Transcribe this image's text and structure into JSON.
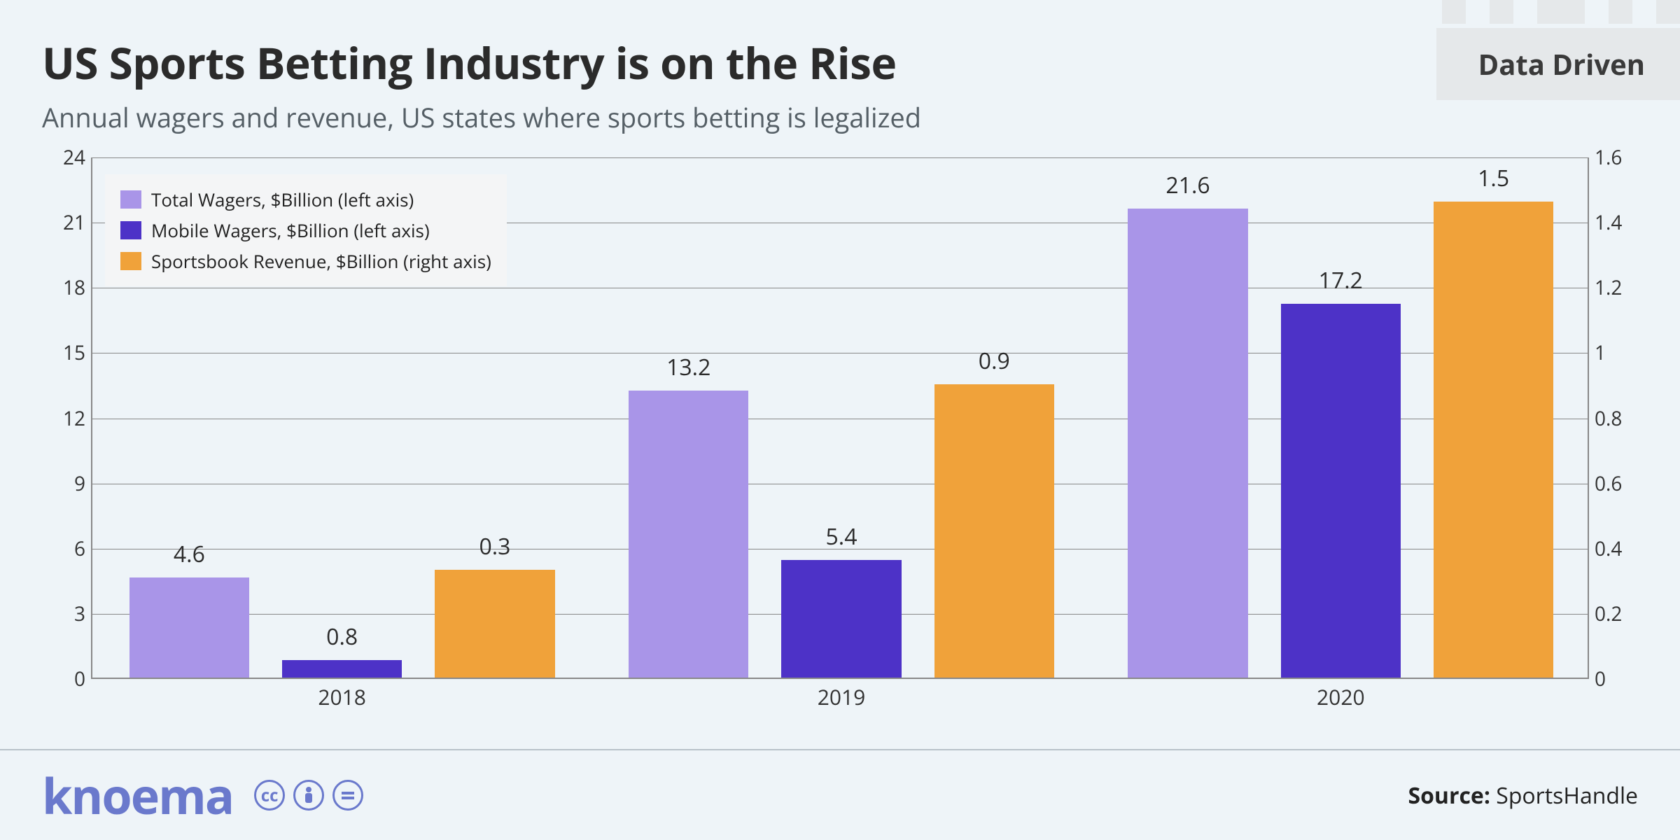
{
  "header": {
    "title": "US Sports Betting Industry is on the Rise",
    "subtitle": "Annual wagers and revenue, US states where sports betting is legalized",
    "badge": "Data Driven"
  },
  "chart": {
    "type": "bar",
    "background_color": "#eef4f8",
    "grid_color": "#888888",
    "categories": [
      "2018",
      "2019",
      "2020"
    ],
    "left_axis": {
      "min": 0,
      "max": 24,
      "step": 3,
      "ticks": [
        0,
        3,
        6,
        9,
        12,
        15,
        18,
        21,
        24
      ]
    },
    "right_axis": {
      "min": 0,
      "max": 1.6,
      "step": 0.2,
      "ticks": [
        0,
        0.2,
        0.4,
        0.6,
        0.8,
        1,
        1.2,
        1.4,
        1.6
      ]
    },
    "x_label_fontsize": 30,
    "y_label_fontsize": 28,
    "bar_label_fontsize": 32,
    "bar_width_pct": 8.0,
    "group_gap_pct": 2.2,
    "series": [
      {
        "name": "Total Wagers, $Billion (left axis)",
        "color": "#a995e8",
        "axis": "left",
        "values": [
          4.6,
          13.2,
          21.6
        ],
        "labels": [
          "4.6",
          "13.2",
          "21.6"
        ]
      },
      {
        "name": "Mobile Wagers, $Billion (left axis)",
        "color": "#4d32c7",
        "axis": "left",
        "values": [
          0.8,
          5.4,
          17.2
        ],
        "labels": [
          "0.8",
          "5.4",
          "17.2"
        ]
      },
      {
        "name": "Sportsbook Revenue, $Billion (right axis)",
        "color": "#f0a23a",
        "axis": "right",
        "values": [
          0.33,
          0.9,
          1.46
        ],
        "labels": [
          "0.3",
          "0.9",
          "1.5"
        ]
      }
    ]
  },
  "footer": {
    "logo": "knoema",
    "logo_color": "#6a79cc",
    "source_label": "Source:",
    "source_value": "SportsHandle"
  }
}
